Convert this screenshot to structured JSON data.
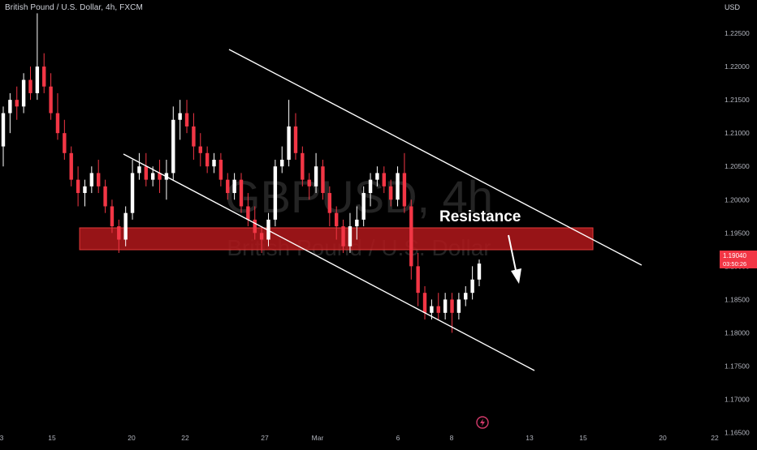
{
  "header": {
    "title": "British Pound / U.S. Dollar, 4h, FXCM",
    "currency": "USD"
  },
  "watermark": {
    "symbol": "GBPUSD, 4h",
    "name": "British Pound / U.S. Dollar"
  },
  "last_price": {
    "value": "1.19040",
    "countdown": "03:50:26",
    "color": "#f23645"
  },
  "colors": {
    "background": "#000000",
    "up": "#ffffff",
    "down": "#f23645",
    "zone": "#b2171b"
  },
  "icons": [
    "lightning-icon"
  ],
  "chart_data": {
    "type": "candlestick",
    "ylim": [
      1.163,
      1.23
    ],
    "y_ticks": [
      "1.16500",
      "1.17000",
      "1.17500",
      "1.18000",
      "1.18500",
      "1.19000",
      "1.19500",
      "1.20000",
      "1.20500",
      "1.21000",
      "1.21500",
      "1.22000",
      "1.22500"
    ],
    "x_ticks": [
      "3",
      "15",
      "20",
      "22",
      "27",
      "Mar",
      "6",
      "8",
      "13",
      "15",
      "20",
      "22"
    ],
    "series": [
      {
        "values": [
          [
            1.208,
            1.214,
            1.205,
            1.213
          ],
          [
            1.213,
            1.216,
            1.21,
            1.215
          ],
          [
            1.215,
            1.217,
            1.212,
            1.214
          ],
          [
            1.214,
            1.219,
            1.213,
            1.218
          ],
          [
            1.218,
            1.22,
            1.215,
            1.216
          ],
          [
            1.216,
            1.228,
            1.215,
            1.22
          ],
          [
            1.22,
            1.222,
            1.216,
            1.217
          ],
          [
            1.217,
            1.219,
            1.212,
            1.213
          ],
          [
            1.213,
            1.216,
            1.209,
            1.21
          ],
          [
            1.21,
            1.212,
            1.206,
            1.207
          ],
          [
            1.207,
            1.208,
            1.202,
            1.203
          ],
          [
            1.203,
            1.205,
            1.199,
            1.201
          ],
          [
            1.201,
            1.203,
            1.199,
            1.202
          ],
          [
            1.202,
            1.205,
            1.201,
            1.204
          ],
          [
            1.204,
            1.206,
            1.201,
            1.202
          ],
          [
            1.202,
            1.203,
            1.198,
            1.199
          ],
          [
            1.199,
            1.2,
            1.195,
            1.196
          ],
          [
            1.196,
            1.197,
            1.192,
            1.194
          ],
          [
            1.194,
            1.199,
            1.193,
            1.198
          ],
          [
            1.198,
            1.206,
            1.197,
            1.204
          ],
          [
            1.204,
            1.207,
            1.203,
            1.205
          ],
          [
            1.205,
            1.207,
            1.202,
            1.203
          ],
          [
            1.203,
            1.205,
            1.202,
            1.204
          ],
          [
            1.204,
            1.206,
            1.201,
            1.203
          ],
          [
            1.203,
            1.206,
            1.2,
            1.204
          ],
          [
            1.204,
            1.214,
            1.203,
            1.212
          ],
          [
            1.212,
            1.215,
            1.209,
            1.213
          ],
          [
            1.213,
            1.215,
            1.21,
            1.211
          ],
          [
            1.211,
            1.213,
            1.206,
            1.208
          ],
          [
            1.208,
            1.21,
            1.205,
            1.207
          ],
          [
            1.207,
            1.208,
            1.204,
            1.205
          ],
          [
            1.205,
            1.207,
            1.204,
            1.206
          ],
          [
            1.206,
            1.207,
            1.202,
            1.203
          ],
          [
            1.203,
            1.204,
            1.2,
            1.201
          ],
          [
            1.201,
            1.204,
            1.2,
            1.203
          ],
          [
            1.203,
            1.204,
            1.198,
            1.199
          ],
          [
            1.199,
            1.201,
            1.196,
            1.197
          ],
          [
            1.197,
            1.199,
            1.194,
            1.195
          ],
          [
            1.195,
            1.196,
            1.192,
            1.194
          ],
          [
            1.194,
            1.198,
            1.193,
            1.197
          ],
          [
            1.197,
            1.206,
            1.196,
            1.205
          ],
          [
            1.205,
            1.208,
            1.204,
            1.206
          ],
          [
            1.206,
            1.215,
            1.205,
            1.211
          ],
          [
            1.211,
            1.213,
            1.206,
            1.207
          ],
          [
            1.207,
            1.208,
            1.202,
            1.203
          ],
          [
            1.203,
            1.204,
            1.2,
            1.202
          ],
          [
            1.202,
            1.207,
            1.201,
            1.205
          ],
          [
            1.205,
            1.206,
            1.2,
            1.201
          ],
          [
            1.201,
            1.202,
            1.196,
            1.198
          ],
          [
            1.198,
            1.199,
            1.194,
            1.196
          ],
          [
            1.196,
            1.197,
            1.192,
            1.193
          ],
          [
            1.193,
            1.198,
            1.192,
            1.196
          ],
          [
            1.196,
            1.199,
            1.194,
            1.197
          ],
          [
            1.197,
            1.202,
            1.196,
            1.201
          ],
          [
            1.201,
            1.204,
            1.199,
            1.203
          ],
          [
            1.203,
            1.205,
            1.202,
            1.204
          ],
          [
            1.204,
            1.205,
            1.201,
            1.202
          ],
          [
            1.202,
            1.203,
            1.199,
            1.2
          ],
          [
            1.2,
            1.205,
            1.199,
            1.204
          ],
          [
            1.204,
            1.207,
            1.198,
            1.199
          ],
          [
            1.199,
            1.2,
            1.188,
            1.19
          ],
          [
            1.19,
            1.192,
            1.184,
            1.186
          ],
          [
            1.186,
            1.187,
            1.182,
            1.183
          ],
          [
            1.183,
            1.185,
            1.182,
            1.184
          ],
          [
            1.184,
            1.186,
            1.182,
            1.183
          ],
          [
            1.183,
            1.186,
            1.182,
            1.185
          ],
          [
            1.185,
            1.186,
            1.18,
            1.183
          ],
          [
            1.183,
            1.186,
            1.182,
            1.185
          ],
          [
            1.185,
            1.187,
            1.184,
            1.186
          ],
          [
            1.186,
            1.19,
            1.185,
            1.188
          ],
          [
            1.188,
            1.191,
            1.187,
            1.1904
          ]
        ]
      }
    ],
    "zone": {
      "low": 1.1911,
      "high": 1.1947
    },
    "annotation": "Resistance"
  }
}
